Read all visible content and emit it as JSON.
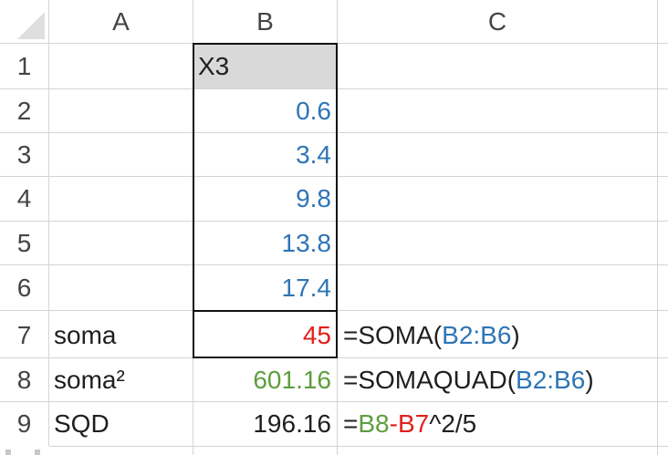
{
  "columns": [
    "A",
    "B",
    "C"
  ],
  "rows": [
    "1",
    "2",
    "3",
    "4",
    "5",
    "6",
    "7",
    "8",
    "9"
  ],
  "cells": {
    "B1": "X3",
    "B2": "0.6",
    "B3": "3.4",
    "B4": "9.8",
    "B5": "13.8",
    "B6": "17.4",
    "A7": "soma",
    "B7": "45",
    "A8": "soma²",
    "B8": "601.16",
    "A9": "SQD",
    "B9": "196.16"
  },
  "formulas": {
    "C7": {
      "prefix": "=SOMA(",
      "ref": "B2:B6",
      "suffix": ")"
    },
    "C8": {
      "prefix": "=SOMAQUAD(",
      "ref": "B2:B6",
      "suffix": ")"
    },
    "C9": {
      "prefix": "=",
      "ref1": "B8",
      "op": "-",
      "ref2": "B7",
      "suffix": "^2/5"
    }
  },
  "colors": {
    "reference_blue": "#2e75b6",
    "reference_red": "#e0201b",
    "reference_green": "#5e9e3f",
    "header_fill": "#d9d9d9",
    "grid": "#d4d4d4"
  }
}
